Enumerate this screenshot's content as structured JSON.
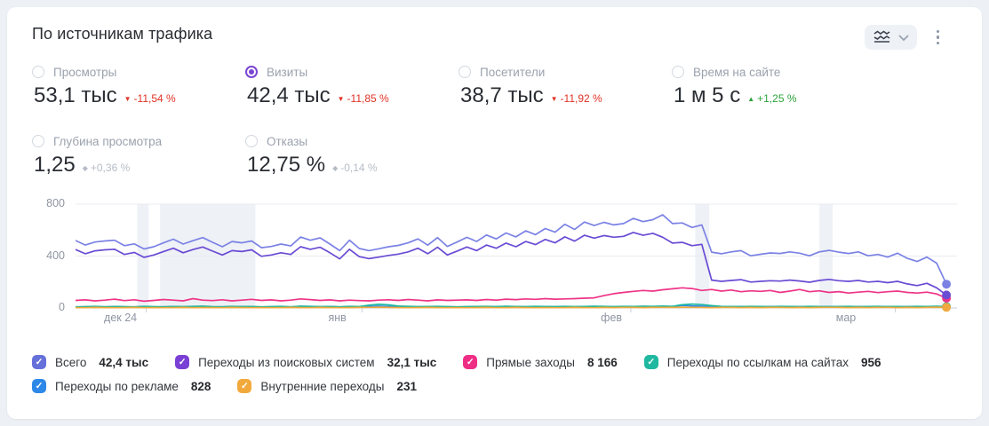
{
  "card": {
    "title": "По источникам трафика"
  },
  "controls": {
    "chart_type_button": "chart-type-selector",
    "menu_button": "more-options"
  },
  "metrics": {
    "items": [
      {
        "label": "Просмотры",
        "value": "53,1 тыс",
        "delta_icon": "▼",
        "delta": "-11,54 %",
        "trend": "down",
        "selected": false
      },
      {
        "label": "Визиты",
        "value": "42,4 тыс",
        "delta_icon": "▼",
        "delta": "-11,85 %",
        "trend": "down",
        "selected": true
      },
      {
        "label": "Посетители",
        "value": "38,7 тыс",
        "delta_icon": "▼",
        "delta": "-11,92 %",
        "trend": "down",
        "selected": false
      },
      {
        "label": "Время на сайте",
        "value": "1 м 5 с",
        "delta_icon": "▲",
        "delta": "+1,25 %",
        "trend": "up",
        "selected": false
      },
      {
        "label": "Глубина просмотра",
        "value": "1,25",
        "delta_icon": "◆",
        "delta": "+0,36 %",
        "trend": "neutral",
        "selected": false
      },
      {
        "label": "Отказы",
        "value": "12,75 %",
        "delta_icon": "◆",
        "delta": "-0,14 %",
        "trend": "neutral",
        "selected": false
      }
    ]
  },
  "chart_data": {
    "type": "line",
    "ylim": [
      0,
      800
    ],
    "yticks": [
      0,
      400,
      800
    ],
    "grid": true,
    "xlabels": [
      {
        "text": "дек 24",
        "pos": 0.051
      },
      {
        "text": "янв",
        "pos": 0.297
      },
      {
        "text": "фев",
        "pos": 0.608
      },
      {
        "text": "мар",
        "pos": 0.874
      }
    ],
    "xticks": [
      0.08,
      0.325,
      0.63,
      0.93
    ],
    "highlight_bands": [
      [
        0.07,
        0.083
      ],
      [
        0.096,
        0.204
      ],
      [
        0.703,
        0.719
      ],
      [
        0.844,
        0.859
      ]
    ],
    "series": [
      {
        "name": "Всего",
        "color": "#7B82E4",
        "values": [
          520,
          485,
          508,
          516,
          522,
          480,
          494,
          455,
          472,
          502,
          530,
          492,
          518,
          542,
          506,
          472,
          512,
          502,
          516,
          464,
          474,
          492,
          478,
          546,
          522,
          540,
          492,
          442,
          522,
          458,
          442,
          456,
          472,
          482,
          502,
          532,
          484,
          542,
          474,
          508,
          544,
          512,
          562,
          532,
          578,
          548,
          594,
          565,
          612,
          584,
          645,
          605,
          662,
          635,
          660,
          640,
          650,
          690,
          665,
          680,
          718,
          650,
          655,
          620,
          640,
          430,
          418,
          432,
          442,
          402,
          414,
          424,
          420,
          432,
          422,
          402,
          432,
          444,
          430,
          420,
          432,
          402,
          412,
          392,
          422,
          382,
          358,
          392,
          345,
          183
        ]
      },
      {
        "name": "Переходы из поисковых систем",
        "color": "#6A4BD4",
        "values": [
          450,
          418,
          440,
          448,
          452,
          412,
          428,
          390,
          408,
          435,
          460,
          425,
          450,
          470,
          438,
          408,
          442,
          435,
          448,
          398,
          408,
          425,
          412,
          472,
          452,
          468,
          425,
          378,
          452,
          395,
          380,
          392,
          405,
          415,
          432,
          460,
          418,
          468,
          408,
          438,
          470,
          442,
          485,
          460,
          500,
          472,
          512,
          488,
          528,
          502,
          548,
          515,
          560,
          538,
          558,
          545,
          552,
          582,
          560,
          575,
          545,
          500,
          505,
          480,
          490,
          215,
          205,
          212,
          218,
          200,
          205,
          210,
          207,
          215,
          208,
          198,
          212,
          220,
          210,
          205,
          212,
          200,
          205,
          195,
          205,
          185,
          172,
          190,
          155,
          100
        ]
      },
      {
        "name": "Прямые заходы",
        "color": "#EE3387",
        "values": [
          58,
          62,
          55,
          60,
          68,
          57,
          63,
          52,
          58,
          65,
          60,
          55,
          72,
          60,
          57,
          63,
          55,
          60,
          66,
          58,
          62,
          55,
          60,
          70,
          64,
          58,
          62,
          55,
          60,
          57,
          55,
          60,
          63,
          58,
          65,
          60,
          55,
          62,
          58,
          60,
          62,
          58,
          65,
          60,
          68,
          64,
          70,
          66,
          72,
          68,
          70,
          72,
          75,
          78,
          95,
          110,
          120,
          128,
          135,
          130,
          140,
          148,
          155,
          150,
          135,
          142,
          130,
          138,
          125,
          132,
          128,
          135,
          120,
          130,
          142,
          125,
          132,
          120,
          126,
          115,
          122,
          128,
          118,
          125,
          130,
          120,
          115,
          122,
          108,
          75
        ]
      },
      {
        "name": "Переходы по ссылкам на сайтах",
        "color": "#1FB8A0",
        "values": [
          8,
          10,
          12,
          9,
          11,
          10,
          8,
          12,
          10,
          9,
          11,
          10,
          12,
          14,
          10,
          9,
          12,
          10,
          11,
          9,
          10,
          12,
          9,
          14,
          12,
          10,
          11,
          9,
          12,
          10,
          22,
          28,
          24,
          15,
          12,
          10,
          11,
          12,
          10,
          9,
          10,
          11,
          12,
          10,
          13,
          11,
          10,
          12,
          11,
          10,
          12,
          10,
          11,
          13,
          12,
          10,
          12,
          11,
          13,
          12,
          14,
          12,
          25,
          30,
          26,
          18,
          12,
          11,
          10,
          12,
          11,
          10,
          12,
          11,
          10,
          12,
          11,
          10,
          11,
          12,
          10,
          11,
          12,
          10,
          11,
          10,
          12,
          11,
          13,
          10
        ]
      },
      {
        "name": "Переходы по рекламе",
        "color": "#3389E8",
        "values": [
          9,
          8,
          10,
          9,
          11,
          8,
          9,
          10,
          8,
          9,
          10,
          9,
          11,
          10,
          8,
          9,
          10,
          11,
          9,
          8,
          9,
          10,
          8,
          12,
          10,
          9,
          11,
          8,
          10,
          9,
          12,
          14,
          11,
          9,
          10,
          8,
          9,
          10,
          9,
          8,
          9,
          10,
          11,
          9,
          12,
          10,
          9,
          11,
          10,
          9,
          10,
          9,
          11,
          12,
          10,
          9,
          11,
          10,
          12,
          11,
          13,
          11,
          20,
          16,
          14,
          12,
          10,
          9,
          11,
          10,
          9,
          10,
          11,
          9,
          10,
          11,
          9,
          10,
          9,
          11,
          10,
          9,
          11,
          10,
          9,
          10,
          11,
          9,
          12,
          8
        ]
      },
      {
        "name": "Внутренние переходы",
        "color": "#F0A93E",
        "values": [
          3,
          2,
          4,
          3,
          2,
          3,
          4,
          2,
          3,
          2,
          3,
          4,
          2,
          3,
          3,
          2,
          4,
          3,
          2,
          3,
          2,
          3,
          4,
          3,
          2,
          4,
          3,
          2,
          3,
          4,
          5,
          6,
          4,
          3,
          2,
          3,
          4,
          3,
          2,
          3,
          2,
          3,
          4,
          2,
          3,
          4,
          3,
          2,
          3,
          2,
          3,
          4,
          3,
          2,
          4,
          3,
          5,
          4,
          3,
          4,
          5,
          4,
          6,
          5,
          4,
          3,
          4,
          5,
          3,
          4,
          3,
          4,
          5,
          3,
          4,
          3,
          4,
          5,
          4,
          3,
          4,
          3,
          4,
          5,
          3,
          4,
          3,
          4,
          6,
          5
        ]
      }
    ]
  },
  "legend": {
    "items": [
      {
        "label": "Всего",
        "value": "42,4 тыс",
        "color": "#6670DA"
      },
      {
        "label": "Переходы из поисковых систем",
        "value": "32,1 тыс",
        "color": "#7A3FD4"
      },
      {
        "label": "Прямые заходы",
        "value": "8 166",
        "color": "#EE2D84"
      },
      {
        "label": "Переходы по ссылкам на сайтах",
        "value": "956",
        "color": "#1FB8A0"
      },
      {
        "label": "Переходы по рекламе",
        "value": "828",
        "color": "#2E88E8"
      },
      {
        "label": "Внутренние переходы",
        "value": "231",
        "color": "#F2A93C"
      }
    ]
  }
}
